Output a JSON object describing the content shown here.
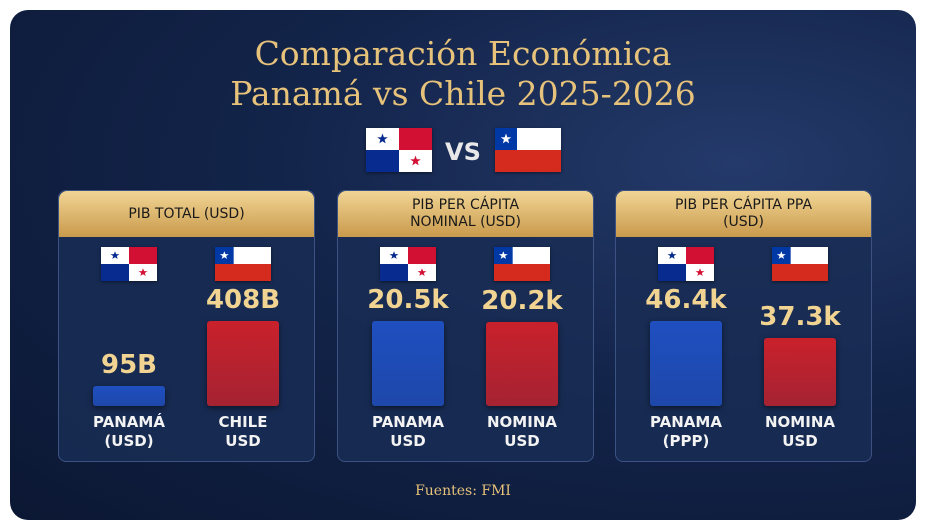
{
  "header": {
    "title": [
      "Comparación Económica",
      "Panamá vs Chile 2025-2026"
    ],
    "vs": "VS"
  },
  "chart_data": [
    {
      "type": "bar",
      "title": "PIB TOTAL (USD)",
      "categories": [
        "PANAMÁ (USD)",
        "CHILE USD"
      ],
      "values": [
        95,
        408
      ],
      "value_labels": [
        "95B",
        "408B"
      ],
      "colors": [
        "#1f4fc0",
        "#c9212b"
      ]
    },
    {
      "type": "bar",
      "title": "PIB PER CÁPITA NOMINAL (USD)",
      "categories": [
        "PANAMA USD",
        "NOMINA USD"
      ],
      "values": [
        20.5,
        20.2
      ],
      "value_labels": [
        "20.5k",
        "20.2k"
      ],
      "colors": [
        "#1f4fc0",
        "#c9212b"
      ]
    },
    {
      "type": "bar",
      "title": "PIB PER CÁPITA PPA (USD)",
      "categories": [
        "PANAMA (PPP)",
        "NOMINA USD"
      ],
      "values": [
        46.4,
        37.3
      ],
      "value_labels": [
        "46.4k",
        "37.3k"
      ],
      "colors": [
        "#1f4fc0",
        "#c9212b"
      ]
    }
  ],
  "source": "Fuentes: FMI"
}
